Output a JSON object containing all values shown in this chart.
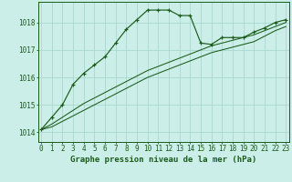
{
  "title": "Graphe pression niveau de la mer (hPa)",
  "bg_color": "#cceee8",
  "grid_color": "#aad8d2",
  "line_color": "#1a5c1a",
  "xlim": [
    -0.3,
    23.3
  ],
  "ylim": [
    1013.65,
    1018.75
  ],
  "yticks": [
    1014,
    1015,
    1016,
    1017,
    1018
  ],
  "xticks": [
    0,
    1,
    2,
    3,
    4,
    5,
    6,
    7,
    8,
    9,
    10,
    11,
    12,
    13,
    14,
    15,
    16,
    17,
    18,
    19,
    20,
    21,
    22,
    23
  ],
  "series1_x": [
    0,
    1,
    2,
    3,
    4,
    5,
    6,
    7,
    8,
    9,
    10,
    11,
    12,
    13,
    14,
    15,
    16,
    17,
    18,
    19,
    20,
    21,
    22,
    23
  ],
  "series1_y": [
    1014.1,
    1014.55,
    1015.0,
    1015.75,
    1016.15,
    1016.45,
    1016.75,
    1017.25,
    1017.75,
    1018.1,
    1018.45,
    1018.45,
    1018.45,
    1018.25,
    1018.25,
    1017.25,
    1017.2,
    1017.45,
    1017.45,
    1017.45,
    1017.65,
    1017.8,
    1018.0,
    1018.1
  ],
  "series2_x": [
    0,
    1,
    2,
    3,
    4,
    5,
    6,
    7,
    8,
    9,
    10,
    11,
    12,
    13,
    14,
    15,
    16,
    17,
    18,
    19,
    20,
    21,
    22,
    23
  ],
  "series2_y": [
    1014.1,
    1014.3,
    1014.55,
    1014.8,
    1015.05,
    1015.25,
    1015.45,
    1015.65,
    1015.85,
    1016.05,
    1016.25,
    1016.4,
    1016.55,
    1016.7,
    1016.85,
    1017.0,
    1017.15,
    1017.25,
    1017.35,
    1017.45,
    1017.55,
    1017.7,
    1017.85,
    1018.0
  ],
  "series3_x": [
    0,
    1,
    2,
    3,
    4,
    5,
    6,
    7,
    8,
    9,
    10,
    11,
    12,
    13,
    14,
    15,
    16,
    17,
    18,
    19,
    20,
    21,
    22,
    23
  ],
  "series3_y": [
    1014.1,
    1014.2,
    1014.4,
    1014.6,
    1014.8,
    1015.0,
    1015.2,
    1015.4,
    1015.6,
    1015.8,
    1016.0,
    1016.15,
    1016.3,
    1016.45,
    1016.6,
    1016.75,
    1016.9,
    1017.0,
    1017.1,
    1017.2,
    1017.3,
    1017.5,
    1017.7,
    1017.85
  ],
  "title_fontsize": 6.5,
  "tick_fontsize": 5.5
}
